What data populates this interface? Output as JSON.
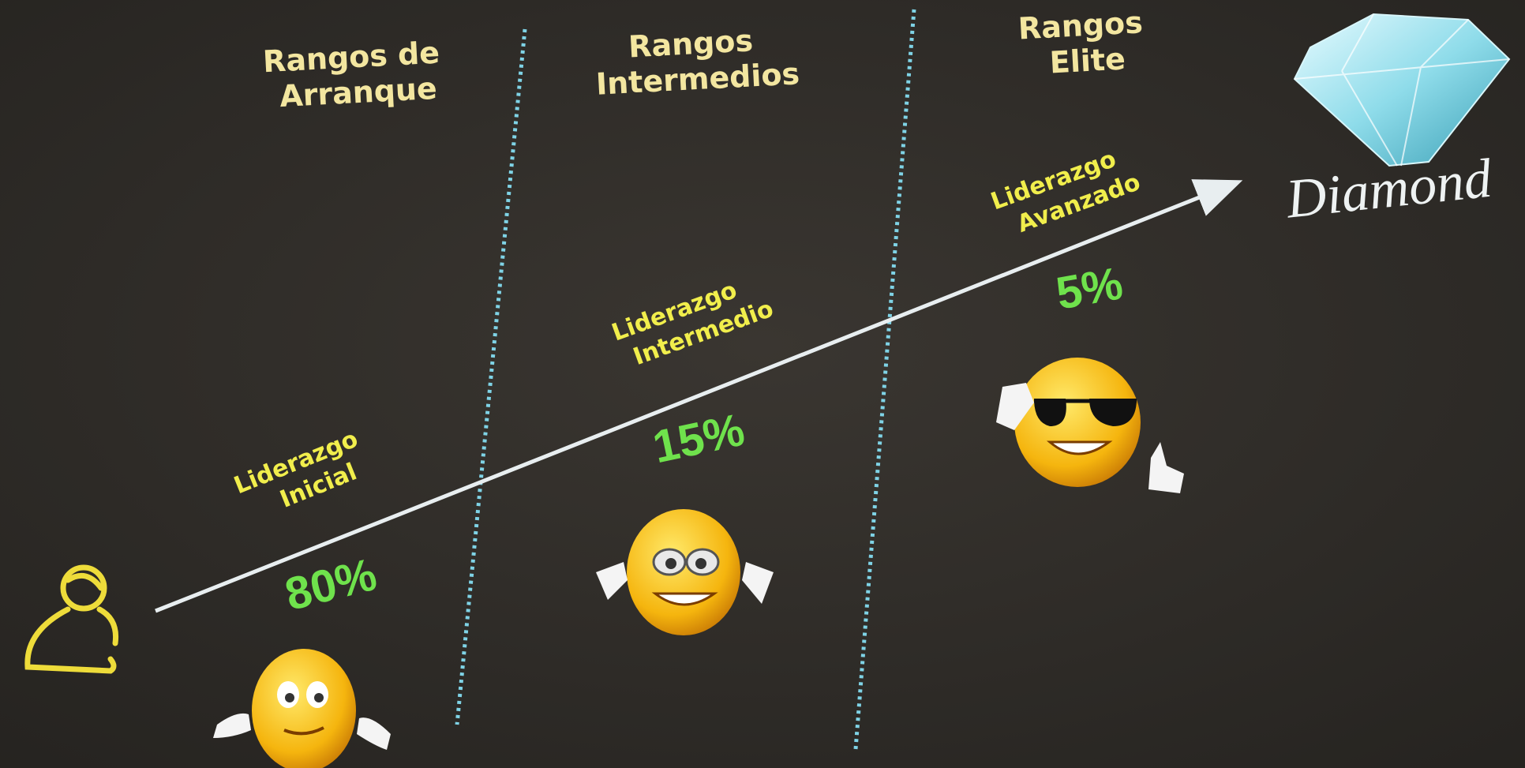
{
  "columns": [
    {
      "title": [
        "Rangos de",
        "Arranque"
      ],
      "level": [
        "Liderazgo",
        "Inicial"
      ],
      "percent": "80%"
    },
    {
      "title": [
        "Rangos",
        "Intermedios"
      ],
      "level": [
        "Liderazgo",
        "Intermedio"
      ],
      "percent": "15%"
    },
    {
      "title": [
        "Rangos",
        "Elite"
      ],
      "level": [
        "Liderazgo",
        "Avanzado"
      ],
      "percent": "5%"
    }
  ],
  "logo": "Diamond"
}
